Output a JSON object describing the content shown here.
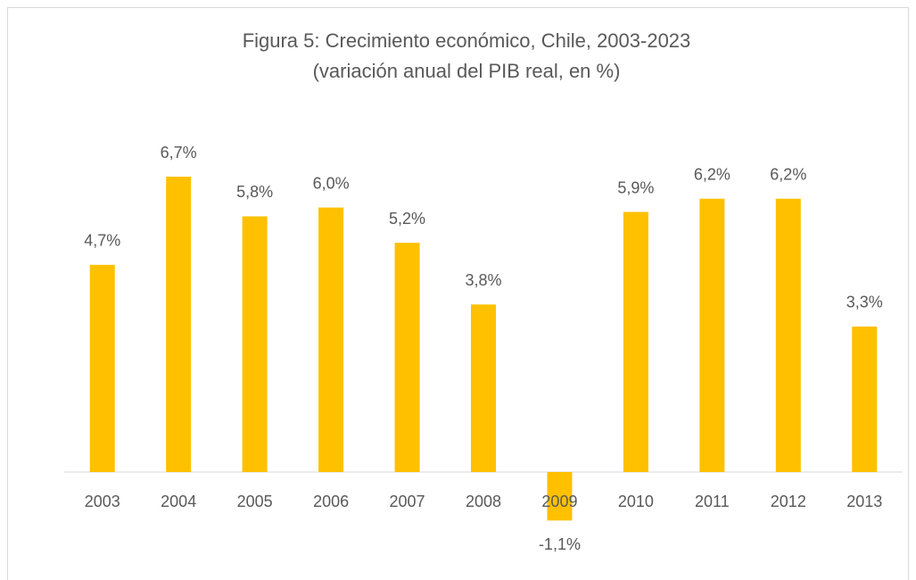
{
  "chart_data": {
    "type": "bar",
    "title": "Figura 5: Crecimiento económico, Chile, 2003-2023",
    "subtitle": "(variación anual del PIB real, en %)",
    "categories": [
      "2003",
      "2004",
      "2005",
      "2006",
      "2007",
      "2008",
      "2009",
      "2010",
      "2011",
      "2012",
      "2013"
    ],
    "values": [
      4.7,
      6.7,
      5.8,
      6.0,
      5.2,
      3.8,
      -1.1,
      5.9,
      6.2,
      6.2,
      3.3
    ],
    "value_labels": [
      "4,7%",
      "6,7%",
      "5,8%",
      "6,0%",
      "5,2%",
      "3,8%",
      "-1,1%",
      "5,9%",
      "6,2%",
      "6,2%",
      "3,3%"
    ],
    "color": "#ffc000"
  }
}
